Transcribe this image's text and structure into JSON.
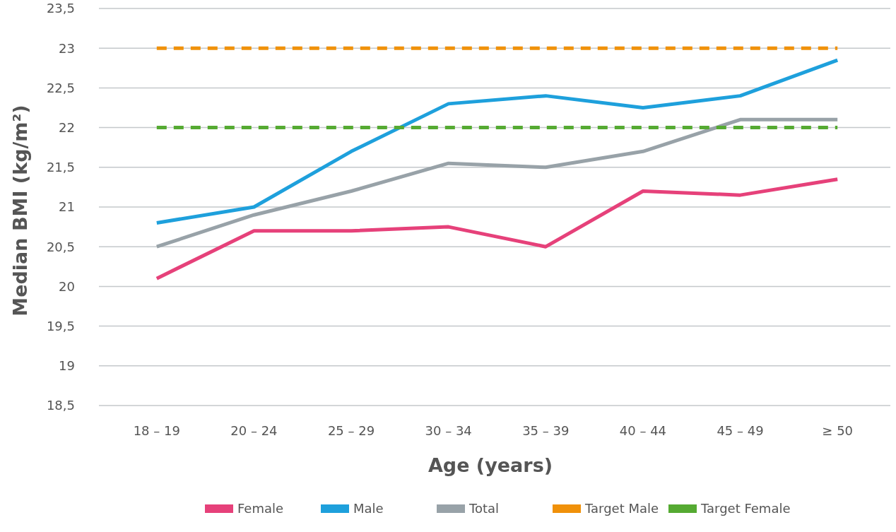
{
  "chart_data": {
    "type": "line",
    "xlabel": "Age (years)",
    "ylabel": "Median BMI (kg/m²)",
    "categories": [
      "18 – 19",
      "20 – 24",
      "25 – 29",
      "30 – 34",
      "35 – 39",
      "40 – 44",
      "45 – 49",
      "≥ 50"
    ],
    "series": [
      {
        "name": "Female",
        "color": "#e6417a",
        "values": [
          20.1,
          20.7,
          20.7,
          20.75,
          20.5,
          21.2,
          21.15,
          21.35
        ]
      },
      {
        "name": "Male",
        "color": "#1ea0dc",
        "values": [
          20.8,
          21.0,
          21.7,
          22.3,
          22.4,
          22.25,
          22.4,
          22.85
        ]
      },
      {
        "name": "Total",
        "color": "#98a2a8",
        "values": [
          20.5,
          20.9,
          21.2,
          21.55,
          21.5,
          21.7,
          22.1,
          22.1
        ]
      },
      {
        "name": "Target Male",
        "color": "#f0910a",
        "line_style": "dashed",
        "values": [
          23,
          23,
          23,
          23,
          23,
          23,
          23,
          23
        ]
      },
      {
        "name": "Target Female",
        "color": "#55aa32",
        "line_style": "dashed",
        "values": [
          22,
          22,
          22,
          22,
          22,
          22,
          22,
          22
        ]
      }
    ],
    "ylim": [
      18.5,
      23.5
    ],
    "yticks": [
      {
        "value": 18.5,
        "label": "18,5"
      },
      19,
      {
        "value": 19.5,
        "label": "19,5"
      },
      20,
      {
        "value": 20.5,
        "label": "20,5"
      },
      21,
      {
        "value": 21.5,
        "label": "21,5"
      },
      22,
      {
        "value": 22.5,
        "label": "22,5"
      },
      23,
      {
        "value": 23.5,
        "label": "23,5"
      }
    ],
    "grid": "y",
    "legend": "bottom"
  }
}
